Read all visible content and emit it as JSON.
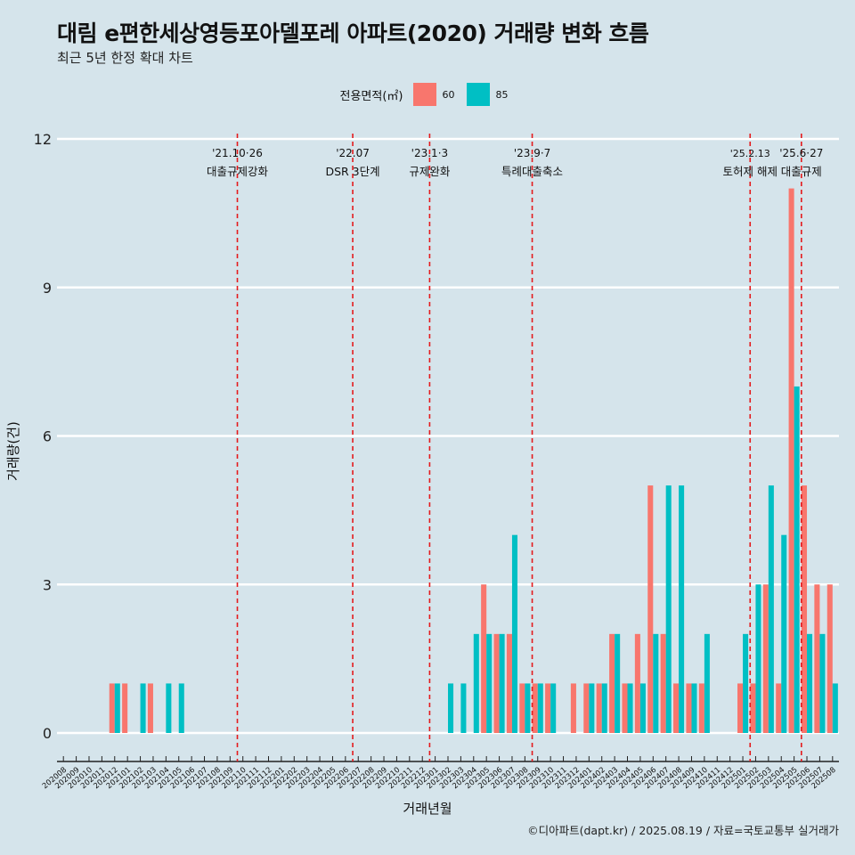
{
  "chart_data": {
    "type": "bar",
    "title": "대림 e편한세상영등포아델포레 아파트(2020) 거래량 변화 흐름",
    "subtitle": "최근 5년 한정 확대 차트",
    "xlabel": "거래년월",
    "ylabel": "거래량(건)",
    "caption": "©디아파트(dapt.kr) / 2025.08.19 / 자료=국토교통부 실거래가",
    "legend_title": "전용면적(㎡)",
    "legend_position": "top",
    "ylim": [
      -0.5,
      12.3
    ],
    "yticks": [
      0,
      3,
      6,
      9,
      12
    ],
    "grid": true,
    "categories": [
      "202008",
      "202009",
      "202010",
      "202011",
      "202012",
      "202101",
      "202102",
      "202103",
      "202104",
      "202105",
      "202106",
      "202107",
      "202108",
      "202109",
      "202110",
      "202111",
      "202112",
      "202201",
      "202202",
      "202203",
      "202204",
      "202205",
      "202206",
      "202207",
      "202208",
      "202209",
      "202210",
      "202211",
      "202212",
      "202301",
      "202302",
      "202303",
      "202304",
      "202305",
      "202306",
      "202307",
      "202308",
      "202309",
      "202310",
      "202311",
      "202312",
      "202401",
      "202402",
      "202403",
      "202404",
      "202405",
      "202406",
      "202407",
      "202408",
      "202409",
      "202410",
      "202411",
      "202412",
      "202501",
      "202502",
      "202503",
      "202504",
      "202505",
      "202506",
      "202507",
      "202508"
    ],
    "series": [
      {
        "name": "60",
        "color": "#F8766D",
        "values": [
          0,
          0,
          0,
          0,
          1,
          1,
          0,
          1,
          0,
          0,
          0,
          0,
          0,
          0,
          0,
          0,
          0,
          0,
          0,
          0,
          0,
          0,
          0,
          0,
          0,
          0,
          0,
          0,
          0,
          0,
          0,
          0,
          0,
          3,
          2,
          2,
          1,
          1,
          1,
          0,
          1,
          1,
          1,
          2,
          1,
          2,
          5,
          2,
          1,
          1,
          1,
          0,
          0,
          1,
          1,
          3,
          1,
          11,
          5,
          3,
          3
        ]
      },
      {
        "name": "85",
        "color": "#00BFC4",
        "values": [
          0,
          0,
          0,
          0,
          1,
          0,
          1,
          0,
          1,
          1,
          0,
          0,
          0,
          0,
          0,
          0,
          0,
          0,
          0,
          0,
          0,
          0,
          0,
          0,
          0,
          0,
          0,
          0,
          0,
          0,
          1,
          1,
          2,
          2,
          2,
          4,
          1,
          1,
          1,
          0,
          0,
          1,
          1,
          2,
          1,
          1,
          2,
          5,
          5,
          1,
          2,
          0,
          0,
          2,
          3,
          5,
          4,
          7,
          2,
          2,
          1
        ]
      }
    ],
    "annotations": [
      {
        "category": "202110",
        "date": "'21.10·26",
        "text": "대출규제강화"
      },
      {
        "category": "202207",
        "date": "'22.07",
        "text": "DSR 3단계"
      },
      {
        "category": "202301",
        "date": "'23.1·3",
        "text": "규제완화"
      },
      {
        "category": "202309",
        "date": "'23.9·7",
        "text": "특례대출축소"
      },
      {
        "category": "202502",
        "date": "'25.2.13",
        "text": "토허제 해제"
      },
      {
        "category": "202506",
        "date": "'25.6·27",
        "text": "대출규제"
      }
    ]
  }
}
